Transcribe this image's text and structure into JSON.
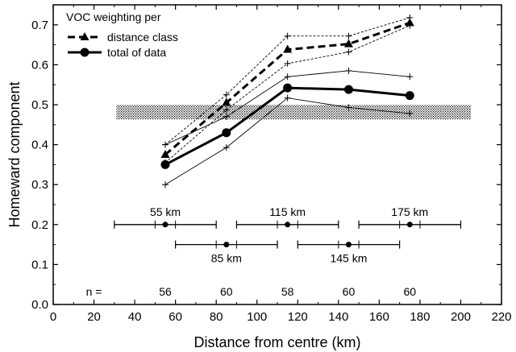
{
  "chart_data": {
    "type": "line",
    "xlabel": "Distance from centre (km)",
    "ylabel": "Homeward component",
    "xlim": [
      0,
      220
    ],
    "ylim": [
      0.0,
      0.75
    ],
    "xticks": [
      0,
      20,
      40,
      60,
      80,
      100,
      120,
      140,
      160,
      180,
      200,
      220
    ],
    "yticks": [
      0.0,
      0.1,
      0.2,
      0.3,
      0.4,
      0.5,
      0.6,
      0.7
    ],
    "xtick_labels": [
      "0",
      "20",
      "40",
      "60",
      "80",
      "100",
      "120",
      "140",
      "160",
      "180",
      "200",
      "220"
    ],
    "ytick_labels": [
      "0.0",
      "0.1",
      "0.2",
      "0.3",
      "0.4",
      "0.5",
      "0.6",
      "0.7"
    ],
    "grid": false,
    "legend": {
      "placement": "top-left",
      "title": "VOC weighting per",
      "entries": [
        "distance class",
        "total of data"
      ]
    },
    "x": [
      55,
      85,
      115,
      145,
      175
    ],
    "series": [
      {
        "name": "distance class",
        "style": "dashed-triangle",
        "values": [
          0.375,
          0.505,
          0.638,
          0.652,
          0.705
        ],
        "upper": [
          0.4,
          0.525,
          0.672,
          0.672,
          0.718
        ],
        "lower": [
          0.355,
          0.487,
          0.603,
          0.632,
          0.698
        ]
      },
      {
        "name": "total of data",
        "style": "solid-circle",
        "values": [
          0.35,
          0.43,
          0.542,
          0.538,
          0.523
        ],
        "upper": [
          0.4,
          0.47,
          0.57,
          0.585,
          0.57
        ],
        "lower": [
          0.3,
          0.393,
          0.517,
          0.493,
          0.478
        ]
      }
    ],
    "band": {
      "y0": 0.463,
      "y1": 0.5,
      "x0": 31,
      "x1": 205
    },
    "distance_classes": [
      {
        "label": "55 km",
        "center": 55,
        "range": [
          30,
          80
        ],
        "y": 0.2,
        "inner_ticks": [
          50,
          60
        ],
        "label_pos": "above"
      },
      {
        "label": "85 km",
        "center": 85,
        "range": [
          60,
          110
        ],
        "y": 0.15,
        "inner_ticks": [
          80,
          90
        ],
        "label_pos": "below"
      },
      {
        "label": "115 km",
        "center": 115,
        "range": [
          90,
          140
        ],
        "y": 0.2,
        "inner_ticks": [
          110,
          120
        ],
        "label_pos": "above"
      },
      {
        "label": "145 km",
        "center": 145,
        "range": [
          120,
          170
        ],
        "y": 0.15,
        "inner_ticks": [
          140,
          150
        ],
        "label_pos": "below"
      },
      {
        "label": "175 km",
        "center": 175,
        "range": [
          150,
          200
        ],
        "y": 0.2,
        "inner_ticks": [
          170,
          180
        ],
        "label_pos": "above"
      }
    ],
    "sample_sizes": {
      "prefix": "n =",
      "x": [
        55,
        85,
        115,
        145,
        175
      ],
      "values": [
        "56",
        "60",
        "58",
        "60",
        "60"
      ]
    },
    "colors": {
      "line": "#000000",
      "band": "#000000",
      "background": "#ffffff"
    }
  }
}
